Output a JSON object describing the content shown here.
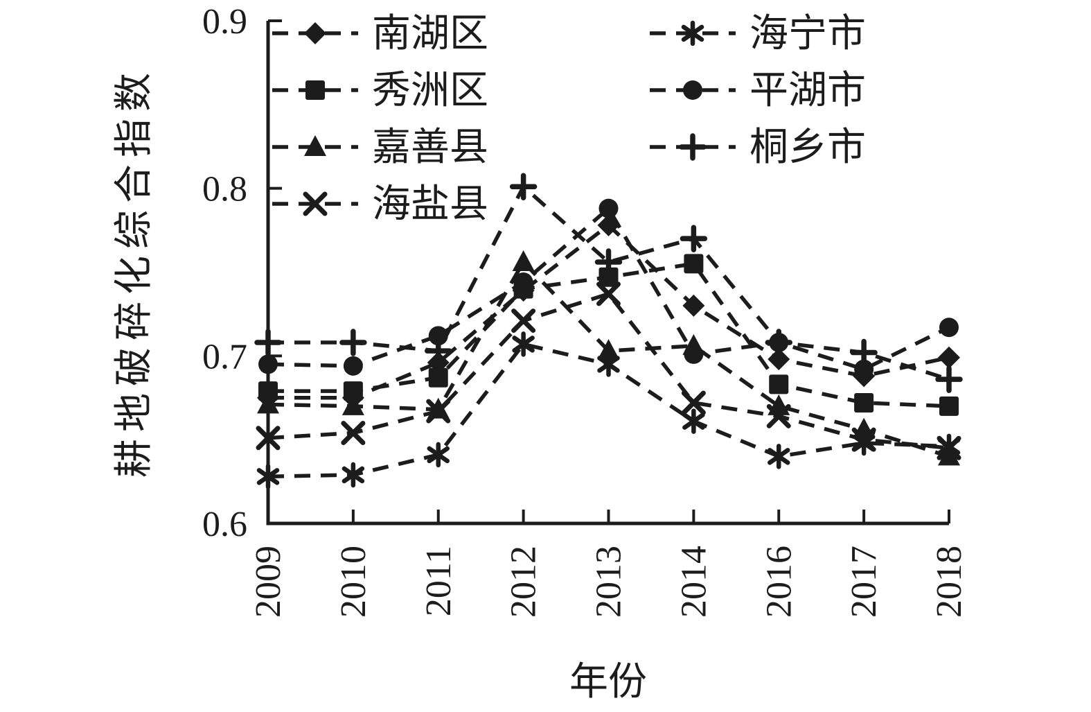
{
  "figure": {
    "background": "#ffffff",
    "ink": "#1c1c1c"
  },
  "chart_data": {
    "type": "line",
    "title": "",
    "xlabel": "年份",
    "ylabel": "耕地破碎化综合指数",
    "line_style": "dashed",
    "grid": false,
    "color": "#1c1c1c",
    "legend_position": "top-left-two-columns",
    "x": [
      "2009",
      "2010",
      "2011",
      "2012",
      "2013",
      "2014",
      "2016",
      "2017",
      "2018"
    ],
    "ylim": [
      0.6,
      0.9
    ],
    "yticks": [
      0.6,
      0.7,
      0.8,
      0.9
    ],
    "ytick_labels": [
      "0.6",
      "0.7",
      "0.8",
      "0.9"
    ],
    "series": [
      {
        "name": "南湖区",
        "id": "nanhu",
        "marker": "diamond",
        "values": [
          0.675,
          0.675,
          0.696,
          0.739,
          0.778,
          0.73,
          0.698,
          0.688,
          0.699
        ]
      },
      {
        "name": "秀洲区",
        "id": "xiuzhou",
        "marker": "square",
        "values": [
          0.679,
          0.679,
          0.687,
          0.74,
          0.747,
          0.755,
          0.683,
          0.672,
          0.67
        ]
      },
      {
        "name": "嘉善县",
        "id": "jiashan",
        "marker": "triangle",
        "values": [
          0.671,
          0.67,
          0.668,
          0.756,
          0.703,
          0.706,
          0.67,
          0.656,
          0.64
        ]
      },
      {
        "name": "海盐县",
        "id": "haiyan",
        "marker": "x",
        "values": [
          0.651,
          0.654,
          0.667,
          0.721,
          0.737,
          0.672,
          0.664,
          0.65,
          0.645
        ]
      },
      {
        "name": "海宁市",
        "id": "haining",
        "marker": "asterisk",
        "values": [
          0.628,
          0.629,
          0.641,
          0.707,
          0.695,
          0.661,
          0.64,
          0.648,
          0.646
        ]
      },
      {
        "name": "平湖市",
        "id": "pinghu",
        "marker": "circle",
        "values": [
          0.695,
          0.694,
          0.712,
          0.744,
          0.788,
          0.701,
          0.708,
          0.692,
          0.717
        ]
      },
      {
        "name": "桐乡市",
        "id": "tongxiang",
        "marker": "plus",
        "values": [
          0.708,
          0.708,
          0.703,
          0.801,
          0.756,
          0.77,
          0.708,
          0.702,
          0.686
        ]
      }
    ],
    "legend_columns": [
      [
        "南湖区",
        "秀洲区",
        "嘉善县",
        "海盐县"
      ],
      [
        "海宁市",
        "平湖市",
        "桐乡市"
      ]
    ]
  }
}
